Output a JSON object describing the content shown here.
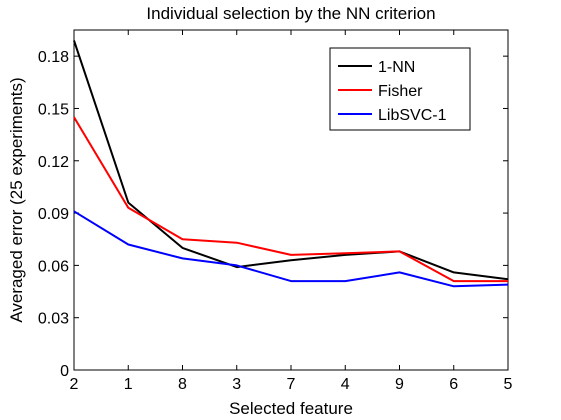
{
  "chart_data": {
    "type": "line",
    "title": "Individual selection by the NN criterion",
    "xlabel": "Selected feature",
    "ylabel": "Averaged error (25 experiments)",
    "categories": [
      "2",
      "1",
      "8",
      "3",
      "7",
      "4",
      "9",
      "6",
      "5"
    ],
    "ylim": [
      0,
      0.195
    ],
    "yticks": [
      0,
      0.03,
      0.06,
      0.09,
      0.12,
      0.15,
      0.18
    ],
    "ytick_labels": [
      "0",
      "0.03",
      "0.06",
      "0.09",
      "0.12",
      "0.15",
      "0.18"
    ],
    "grid": false,
    "legend_position": "top-right",
    "series": [
      {
        "name": "1-NN",
        "color": "#000000",
        "values": [
          0.189,
          0.096,
          0.07,
          0.059,
          0.063,
          0.066,
          0.068,
          0.056,
          0.052
        ]
      },
      {
        "name": "Fisher",
        "color": "#ff0000",
        "values": [
          0.145,
          0.093,
          0.075,
          0.073,
          0.066,
          0.067,
          0.068,
          0.051,
          0.051
        ]
      },
      {
        "name": "LibSVC-1",
        "color": "#0000ff",
        "values": [
          0.091,
          0.072,
          0.064,
          0.06,
          0.051,
          0.051,
          0.056,
          0.048,
          0.049
        ]
      }
    ]
  }
}
